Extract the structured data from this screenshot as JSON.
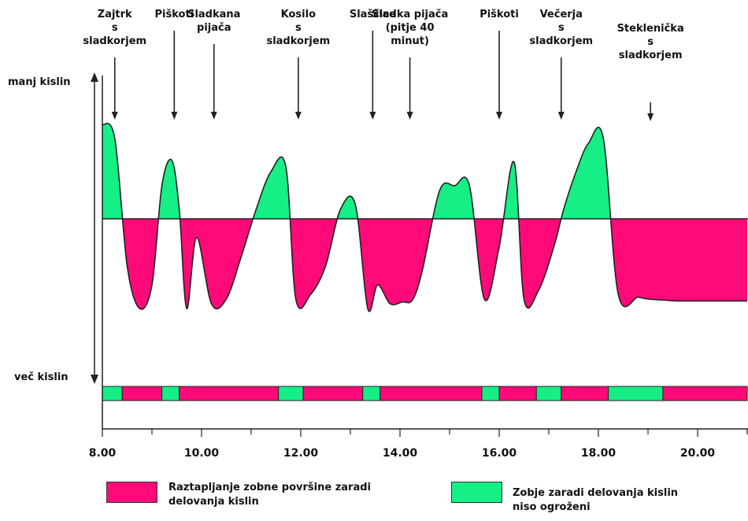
{
  "colors": {
    "acid": "#ff0a78",
    "safe": "#16ee86",
    "line": "#222222"
  },
  "axis": {
    "top_label": "manj kislin",
    "bottom_label": "več kislin"
  },
  "events": [
    {
      "label": "Zajtrk\ns\nsladkorjem",
      "time": 8.25
    },
    {
      "label": "Piškoti",
      "time": 9.45
    },
    {
      "label": "Sladkana\npijača",
      "time": 10.25
    },
    {
      "label": "Kosilo\ns\nsladkorjem",
      "time": 11.95
    },
    {
      "label": "Slaščice",
      "time": 13.45
    },
    {
      "label": "Sladka pijača\n(pitje 40\nminut)",
      "time": 14.2
    },
    {
      "label": "Piškoti",
      "time": 16.0
    },
    {
      "label": "Večerja\ns\nsladkorjem",
      "time": 17.25
    },
    {
      "label": "Steklenička\ns\nsladkorjem",
      "time": 19.05
    }
  ],
  "legend": {
    "acid": "Raztapljanje zobne površine zaradi\ndelovanja kislin",
    "safe": "Zobje zaradi delovanja kislin\nniso ogroženi"
  },
  "chart_data": {
    "type": "area",
    "title": "",
    "xlabel": "",
    "ylabel": "",
    "x_ticks": [
      "8.00",
      "10.00",
      "12.00",
      "14.00",
      "16.00",
      "18.00",
      "20.00"
    ],
    "x_tick_values": [
      8,
      10,
      12,
      14,
      16,
      18,
      20
    ],
    "xlim": [
      8,
      21
    ],
    "ylim": [
      -1,
      1
    ],
    "threshold": 0,
    "series": [
      {
        "x": [
          8.0,
          8.25,
          8.5,
          8.75,
          9.0,
          9.2,
          9.4,
          9.55,
          9.7,
          9.9,
          10.2,
          10.5,
          10.8,
          11.1,
          11.4,
          11.7,
          11.9,
          12.2,
          12.5,
          12.8,
          13.1,
          13.35,
          13.55,
          13.8,
          14.05,
          14.25,
          14.45,
          14.8,
          15.1,
          15.4,
          15.7,
          16.0,
          16.3,
          16.5,
          16.8,
          17.1,
          17.3,
          17.55,
          17.8,
          18.1,
          18.4,
          18.8,
          19.0,
          19.3,
          19.6,
          20.0,
          20.5,
          21.0
        ],
        "values": [
          1.0,
          0.85,
          -0.5,
          -0.95,
          -0.7,
          0.35,
          0.62,
          0.1,
          -0.95,
          -0.2,
          -0.9,
          -0.85,
          -0.4,
          0.1,
          0.5,
          0.55,
          -0.85,
          -0.8,
          -0.5,
          0.1,
          0.15,
          -0.95,
          -0.7,
          -0.9,
          -0.88,
          -0.86,
          -0.55,
          0.3,
          0.35,
          0.35,
          -0.85,
          -0.3,
          0.6,
          -0.85,
          -0.75,
          -0.3,
          0.1,
          0.5,
          0.8,
          0.85,
          -0.8,
          -0.83,
          -0.85,
          -0.86,
          -0.87,
          -0.87,
          -0.87,
          -0.87
        ]
      }
    ],
    "bar_segments": [
      {
        "from": 8.0,
        "to": 8.4,
        "state": "safe"
      },
      {
        "from": 8.4,
        "to": 9.2,
        "state": "acid"
      },
      {
        "from": 9.2,
        "to": 9.55,
        "state": "safe"
      },
      {
        "from": 9.55,
        "to": 11.55,
        "state": "acid"
      },
      {
        "from": 11.55,
        "to": 12.05,
        "state": "safe"
      },
      {
        "from": 12.05,
        "to": 13.25,
        "state": "acid"
      },
      {
        "from": 13.25,
        "to": 13.6,
        "state": "safe"
      },
      {
        "from": 13.6,
        "to": 15.65,
        "state": "acid"
      },
      {
        "from": 15.65,
        "to": 16.0,
        "state": "safe"
      },
      {
        "from": 16.0,
        "to": 16.75,
        "state": "acid"
      },
      {
        "from": 16.75,
        "to": 17.25,
        "state": "safe"
      },
      {
        "from": 17.25,
        "to": 18.2,
        "state": "acid"
      },
      {
        "from": 18.2,
        "to": 19.3,
        "state": "safe"
      },
      {
        "from": 19.3,
        "to": 21.0,
        "state": "acid"
      }
    ]
  }
}
